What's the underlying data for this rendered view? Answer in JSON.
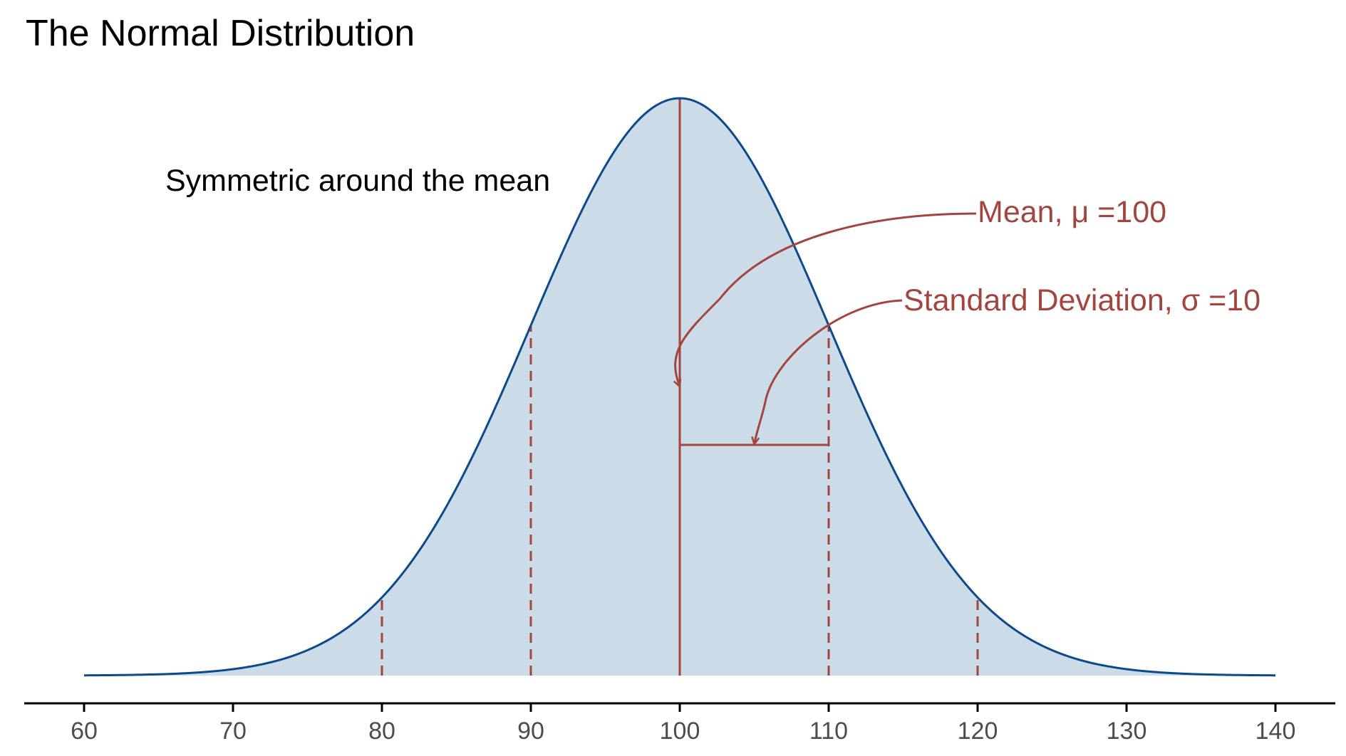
{
  "colors": {
    "curve": "#0d4a8a",
    "fill": "#ccdbe8",
    "annotation": "#a3453f",
    "axis": "#000000",
    "tick_text": "#4d4d4d"
  },
  "chart_data": {
    "type": "area",
    "title": "The Normal Distribution",
    "xlabel": "",
    "ylabel": "",
    "xlim": [
      60,
      140
    ],
    "x_ticks": [
      60,
      70,
      80,
      90,
      100,
      110,
      120,
      130,
      140
    ],
    "x_tick_labels": [
      "60",
      "70",
      "80",
      "90",
      "100",
      "110",
      "120",
      "130",
      "140"
    ],
    "y_axis_visible": false,
    "grid": false,
    "legend": "none",
    "distribution": {
      "mean": 100,
      "sd": 10
    },
    "dashed_lines_x": [
      80,
      90,
      110,
      120
    ],
    "mean_line_x": 100,
    "sd_bracket": {
      "from": 100,
      "to": 110
    },
    "annotations": {
      "symmetric": "Symmetric around the mean",
      "mean_label": "Mean, μ =100",
      "sd_label": "Standard Deviation, σ =10"
    }
  }
}
